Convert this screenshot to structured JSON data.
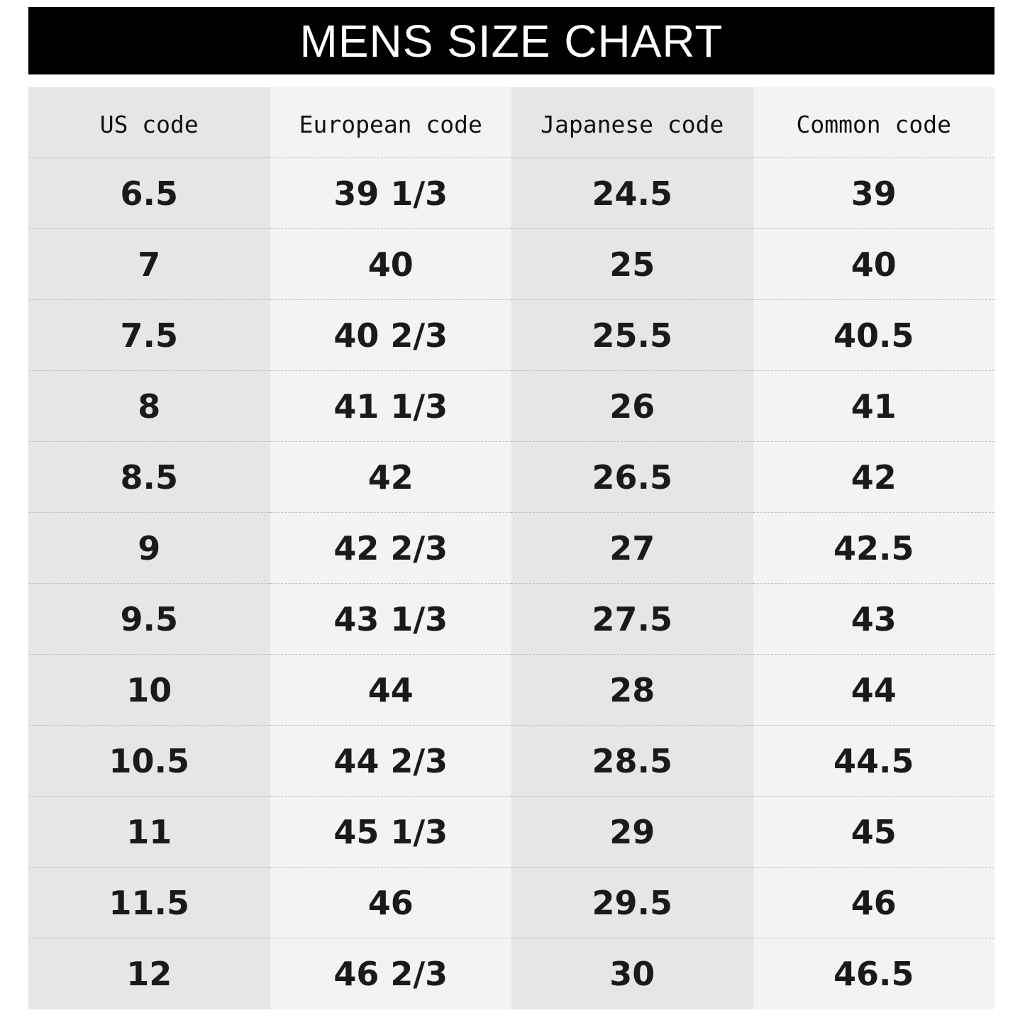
{
  "title": "MENS SIZE CHART",
  "columns": [
    "US code",
    "European code",
    "Japanese code",
    "Common code"
  ],
  "rows": [
    [
      "6.5",
      "39 1/3",
      "24.5",
      "39"
    ],
    [
      "7",
      "40",
      "25",
      "40"
    ],
    [
      "7.5",
      "40 2/3",
      "25.5",
      "40.5"
    ],
    [
      "8",
      "41 1/3",
      "26",
      "41"
    ],
    [
      "8.5",
      "42",
      "26.5",
      "42"
    ],
    [
      "9",
      "42 2/3",
      "27",
      "42.5"
    ],
    [
      "9.5",
      "43 1/3",
      "27.5",
      "43"
    ],
    [
      "10",
      "44",
      "28",
      "44"
    ],
    [
      "10.5",
      "44 2/3",
      "28.5",
      "44.5"
    ],
    [
      "11",
      "45 1/3",
      "29",
      "45"
    ],
    [
      "11.5",
      "46",
      "29.5",
      "46"
    ],
    [
      "12",
      "46 2/3",
      "30",
      "46.5"
    ]
  ],
  "colors": {
    "title_bg": "#000000",
    "column_dark": "#e6e6e6",
    "column_light": "#f3f3f3"
  }
}
